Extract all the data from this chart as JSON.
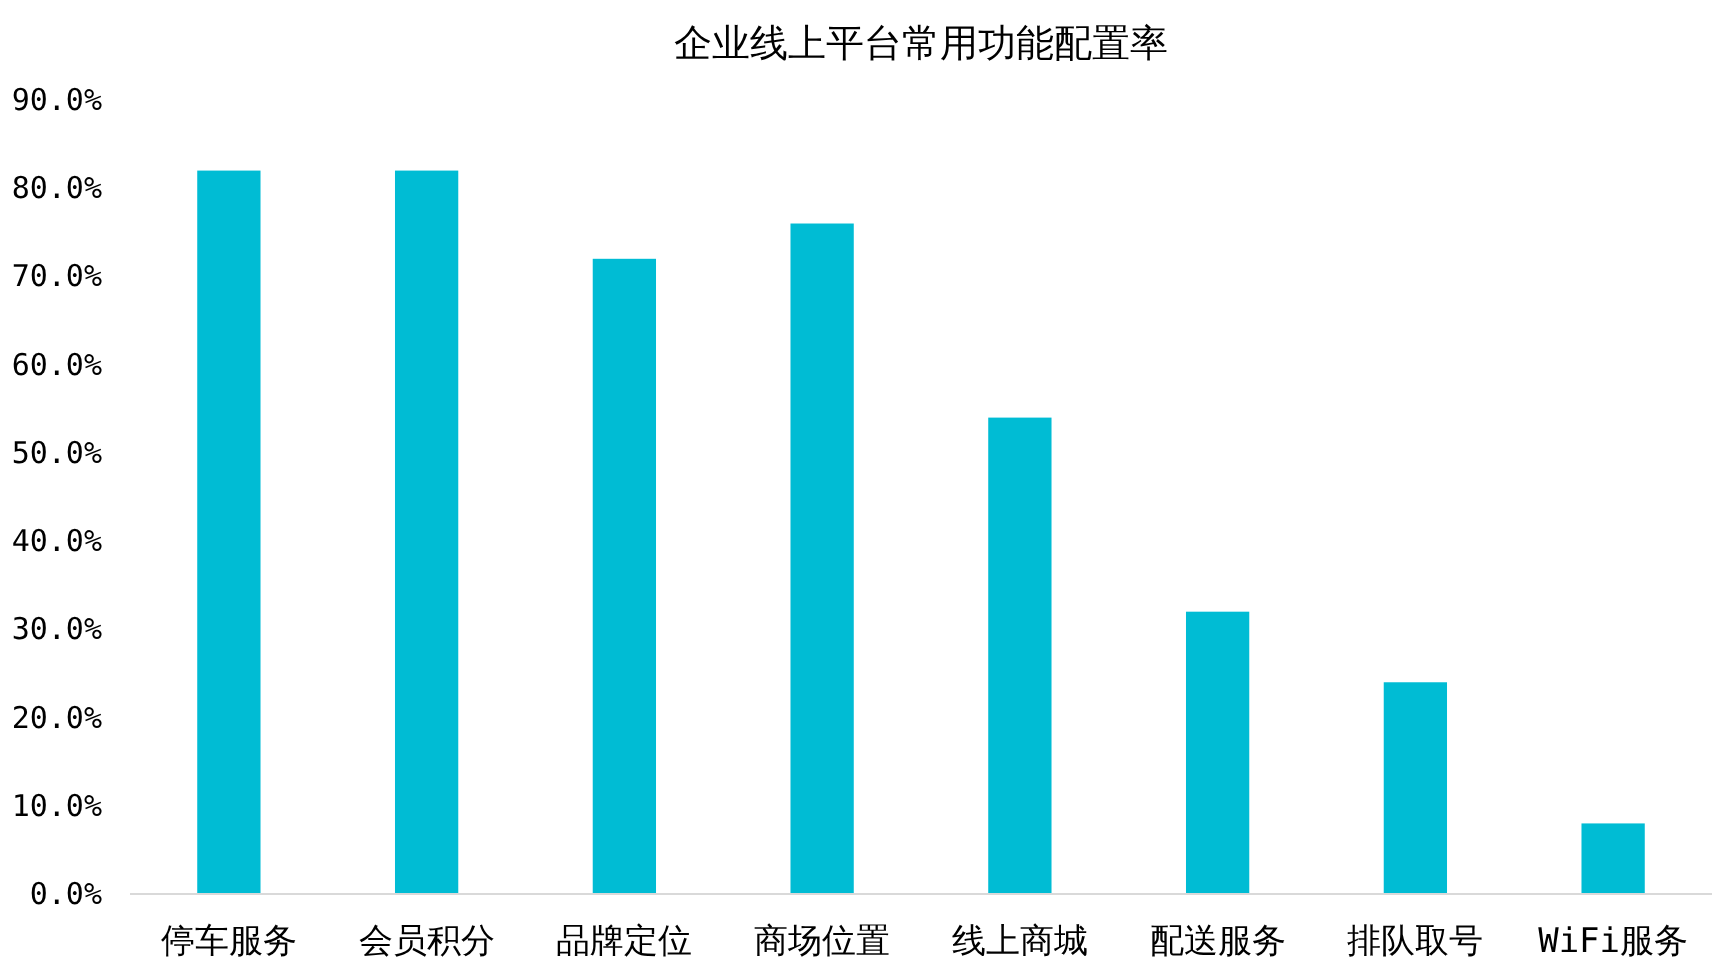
{
  "chart_data": {
    "type": "bar",
    "title": "企业线上平台常用功能配置率",
    "categories": [
      "停车服务",
      "会员积分",
      "品牌定位",
      "商场位置",
      "线上商城",
      "配送服务",
      "排队取号",
      "WiFi服务"
    ],
    "values": [
      82,
      82,
      72,
      76,
      54,
      32,
      24,
      8
    ],
    "color": "#00bcd4",
    "ylim": [
      0,
      90
    ],
    "yticks": [
      {
        "value": 0,
        "label": "0.0%"
      },
      {
        "value": 10,
        "label": "10.0%"
      },
      {
        "value": 20,
        "label": "20.0%"
      },
      {
        "value": 30,
        "label": "30.0%"
      },
      {
        "value": 40,
        "label": "40.0%"
      },
      {
        "value": 50,
        "label": "50.0%"
      },
      {
        "value": 60,
        "label": "60.0%"
      },
      {
        "value": 70,
        "label": "70.0%"
      },
      {
        "value": 80,
        "label": "80.0%"
      },
      {
        "value": 90,
        "label": "90.0%"
      }
    ]
  }
}
